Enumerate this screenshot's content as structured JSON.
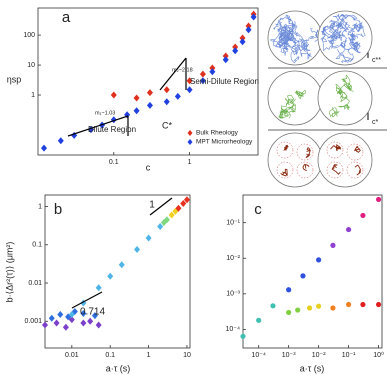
{
  "chart_data": [
    {
      "type": "scatter",
      "panel_label": "a",
      "x_label": "c",
      "y_label": "ηsp",
      "log_x": true,
      "log_y": true,
      "xlim": [
        0.01,
        8
      ],
      "ylim": [
        0.01,
        800
      ],
      "xticks": [
        0.1,
        1
      ],
      "yticks": [
        1,
        10,
        100
      ],
      "marker": "diamond",
      "legend": "lower right",
      "annotations": [
        "Dilute Region",
        "Semi-Dilute Region",
        "m₁~1.03",
        "m₂~2.18",
        "C*"
      ],
      "series": [
        {
          "name": "Bulk Rheology",
          "color": "#e0301e",
          "x": [
            0.1,
            0.2,
            0.3,
            0.5,
            1,
            1.5,
            2,
            3,
            4,
            5,
            6,
            7
          ],
          "values": [
            1,
            0.8,
            1.2,
            1.5,
            3,
            5,
            8,
            20,
            40,
            80,
            200,
            500
          ]
        },
        {
          "name": "MPT Microrheology",
          "color": "#2040e0",
          "x": [
            0.012,
            0.02,
            0.03,
            0.05,
            0.07,
            0.1,
            0.15,
            0.2,
            0.3,
            0.5,
            0.7,
            1,
            1.5,
            2,
            3,
            4,
            5,
            6,
            7
          ],
          "values": [
            0.017,
            0.03,
            0.045,
            0.07,
            0.1,
            0.15,
            0.22,
            0.3,
            0.45,
            0.6,
            0.9,
            1.5,
            3,
            6,
            15,
            30,
            60,
            150,
            400
          ]
        }
      ]
    },
    {
      "type": "scatter",
      "panel_label": "b",
      "x_label": "a·τ (s)",
      "y_label": "b·⟨Δr²(τ)⟩ (μm²)",
      "log_x": true,
      "log_y": true,
      "xlim": [
        0.002,
        12
      ],
      "ylim": [
        0.0002,
        2
      ],
      "xticks": [
        0.01,
        0.1,
        1,
        10
      ],
      "yticks": [
        0.001,
        0.01,
        0.1,
        1
      ],
      "marker": "diamond",
      "annotations": [
        "1",
        "0.714"
      ],
      "series": [
        {
          "color": "#7b3fc9",
          "x": [
            0.002,
            0.004,
            0.007,
            0.01,
            0.02,
            0.03,
            0.05
          ],
          "values": [
            0.0008,
            0.0009,
            0.0007,
            0.0011,
            0.0009,
            0.001,
            0.0008
          ]
        },
        {
          "color": "#2e6fe0",
          "x": [
            0.003,
            0.005,
            0.008,
            0.012,
            0.02,
            0.04
          ],
          "values": [
            0.0012,
            0.0015,
            0.0013,
            0.0018,
            0.0016,
            0.0014
          ]
        },
        {
          "color": "#4fb5e8",
          "x": [
            0.01,
            0.02,
            0.05,
            0.1,
            0.2,
            0.5,
            1,
            2
          ],
          "values": [
            0.0015,
            0.003,
            0.0075,
            0.015,
            0.03,
            0.075,
            0.15,
            0.3
          ]
        },
        {
          "color": "#7fd87f",
          "x": [
            2.5,
            3
          ],
          "values": [
            0.38,
            0.45
          ]
        },
        {
          "color": "#f0d020",
          "x": [
            4,
            5
          ],
          "values": [
            0.6,
            0.75
          ]
        },
        {
          "color": "#e83020",
          "x": [
            6,
            8,
            10
          ],
          "values": [
            0.9,
            1.2,
            1.5
          ]
        }
      ]
    },
    {
      "type": "scatter",
      "panel_label": "c",
      "x_label": "a·τ (s)",
      "log_x": true,
      "log_y": true,
      "xlim": [
        3e-05,
        1.3
      ],
      "ylim": [
        3e-05,
        0.6
      ],
      "marker": "circle",
      "xticks": [
        {
          "value": 0.0001,
          "label": "10⁻⁴"
        },
        {
          "value": 0.001,
          "label": "10⁻³"
        },
        {
          "value": 0.01,
          "label": "10⁻²"
        },
        {
          "value": 0.1,
          "label": "10⁻¹"
        },
        {
          "value": 1,
          "label": "10⁰"
        }
      ],
      "yticks": [
        {
          "value": 0.0001,
          "label": "10⁻⁴"
        },
        {
          "value": 0.001,
          "label": "10⁻³"
        },
        {
          "value": 0.01,
          "label": "10⁻²"
        },
        {
          "value": 0.1,
          "label": "10⁻¹"
        }
      ],
      "series": [
        {
          "color": "#40c0b0",
          "x": [
            3e-05,
            0.0001,
            0.0003
          ],
          "values": [
            6.4e-05,
            0.00018,
            0.00046
          ]
        },
        {
          "color": "#3050e0",
          "x": [
            0.001,
            0.003,
            0.01
          ],
          "values": [
            0.0013,
            0.0032,
            0.009
          ]
        },
        {
          "color": "#9040d0",
          "x": [
            0.03,
            0.1
          ],
          "values": [
            0.023,
            0.064
          ]
        },
        {
          "color": "#e02080",
          "x": [
            0.3,
            1
          ],
          "values": [
            0.16,
            0.45
          ]
        },
        {
          "color": "#80d040",
          "x": [
            0.001,
            0.002
          ],
          "values": [
            0.0003,
            0.00035
          ]
        },
        {
          "color": "#e8d020",
          "x": [
            0.005,
            0.01
          ],
          "values": [
            0.0004,
            0.00045
          ]
        },
        {
          "color": "#f08020",
          "x": [
            0.03,
            0.1
          ],
          "values": [
            0.0004,
            0.0005
          ]
        },
        {
          "color": "#e02020",
          "x": [
            0.3,
            1
          ],
          "values": [
            0.0005,
            0.0005
          ]
        }
      ]
    }
  ],
  "diagram": {
    "labels": [
      "c**",
      "c*"
    ]
  }
}
